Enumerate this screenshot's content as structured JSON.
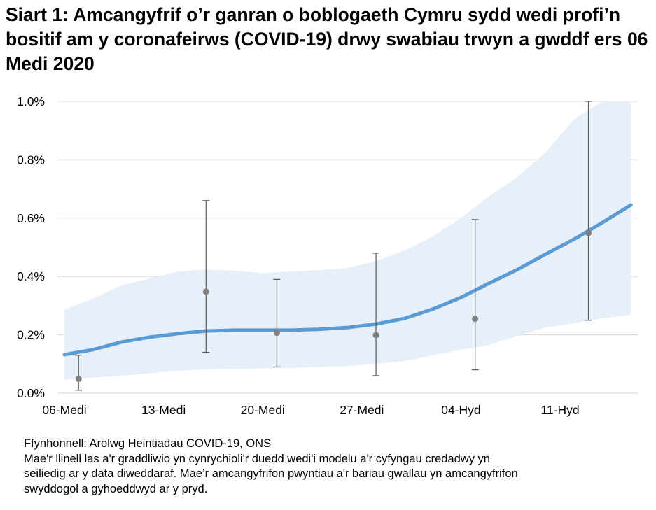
{
  "title": "Siart 1: Amcangyfrif o’r ganran o boblogaeth Cymru sydd wedi profi’n bositif am y coronafeirws (COVID-19) drwy swabiau trwyn a gwddf ers 06 Medi 2020",
  "notes": {
    "source": "Ffynhonnell: Arolwg Heintiadau COVID-19, ONS",
    "line1": "Mae'r llinell las a'r graddliwio yn cynrychioli'r duedd wedi'i modelu a'r cyfyngau credadwy yn",
    "line2": "seiliedig ar y data diweddaraf. Mae’r amcangyfrifon pwyntiau a'r bariau gwallau yn amcangyfrifon",
    "line3": "swyddogol a gyhoeddwyd ar y pryd."
  },
  "chart_data": {
    "type": "line",
    "title": "Siart 1: Amcangyfrif o’r ganran o boblogaeth Cymru sydd wedi profi’n bositif am y coronafeirws (COVID-19) drwy swabiau trwyn a gwddf ers 06 Medi 2020",
    "xlabel": "",
    "ylabel": "",
    "ylim": [
      0,
      1.0
    ],
    "y_unit": "%",
    "y_ticks": [
      "0.0%",
      "0.2%",
      "0.4%",
      "0.6%",
      "0.8%",
      "1.0%"
    ],
    "y_tick_values": [
      0,
      0.2,
      0.4,
      0.6,
      0.8,
      1.0
    ],
    "x_ticks": [
      "06-Medi",
      "13-Medi",
      "20-Medi",
      "27-Medi",
      "04-Hyd",
      "11-Hyd"
    ],
    "x_tick_dates": [
      "2020-09-06",
      "2020-09-13",
      "2020-09-20",
      "2020-09-27",
      "2020-10-04",
      "2020-10-11"
    ],
    "grid": "horizontal",
    "colors": {
      "trend": "#5b9bd5",
      "band": "#e7eff8",
      "points": "#808080",
      "grid": "#d9d9d9"
    },
    "modelled_trend": {
      "dates": [
        "2020-09-06",
        "2020-09-08",
        "2020-09-10",
        "2020-09-12",
        "2020-09-14",
        "2020-09-16",
        "2020-09-18",
        "2020-09-20",
        "2020-09-22",
        "2020-09-24",
        "2020-09-26",
        "2020-09-28",
        "2020-09-30",
        "2020-10-02",
        "2020-10-04",
        "2020-10-06",
        "2020-10-08",
        "2020-10-10",
        "2020-10-12",
        "2020-10-14",
        "2020-10-16"
      ],
      "estimate": [
        0.132,
        0.149,
        0.175,
        0.192,
        0.204,
        0.213,
        0.216,
        0.216,
        0.216,
        0.219,
        0.225,
        0.237,
        0.256,
        0.288,
        0.328,
        0.377,
        0.424,
        0.477,
        0.528,
        0.585,
        0.645
      ],
      "upper": [
        0.285,
        0.324,
        0.369,
        0.393,
        0.417,
        0.424,
        0.42,
        0.412,
        0.417,
        0.422,
        0.429,
        0.453,
        0.489,
        0.537,
        0.6,
        0.676,
        0.741,
        0.827,
        0.94,
        1.0,
        1.0
      ],
      "lower": [
        0.046,
        0.053,
        0.06,
        0.068,
        0.077,
        0.081,
        0.084,
        0.085,
        0.086,
        0.09,
        0.093,
        0.101,
        0.11,
        0.13,
        0.149,
        0.165,
        0.197,
        0.225,
        0.24,
        0.257,
        0.269
      ]
    },
    "official_estimates": [
      {
        "date": "2020-09-07",
        "value": 0.049,
        "lower": 0.01,
        "upper": 0.13
      },
      {
        "date": "2020-09-16",
        "value": 0.348,
        "lower": 0.14,
        "upper": 0.66
      },
      {
        "date": "2020-09-21",
        "value": 0.207,
        "lower": 0.09,
        "upper": 0.39
      },
      {
        "date": "2020-09-28",
        "value": 0.199,
        "lower": 0.06,
        "upper": 0.48
      },
      {
        "date": "2020-10-05",
        "value": 0.255,
        "lower": 0.08,
        "upper": 0.595
      },
      {
        "date": "2020-10-13",
        "value": 0.549,
        "lower": 0.25,
        "upper": 1.0
      }
    ]
  }
}
